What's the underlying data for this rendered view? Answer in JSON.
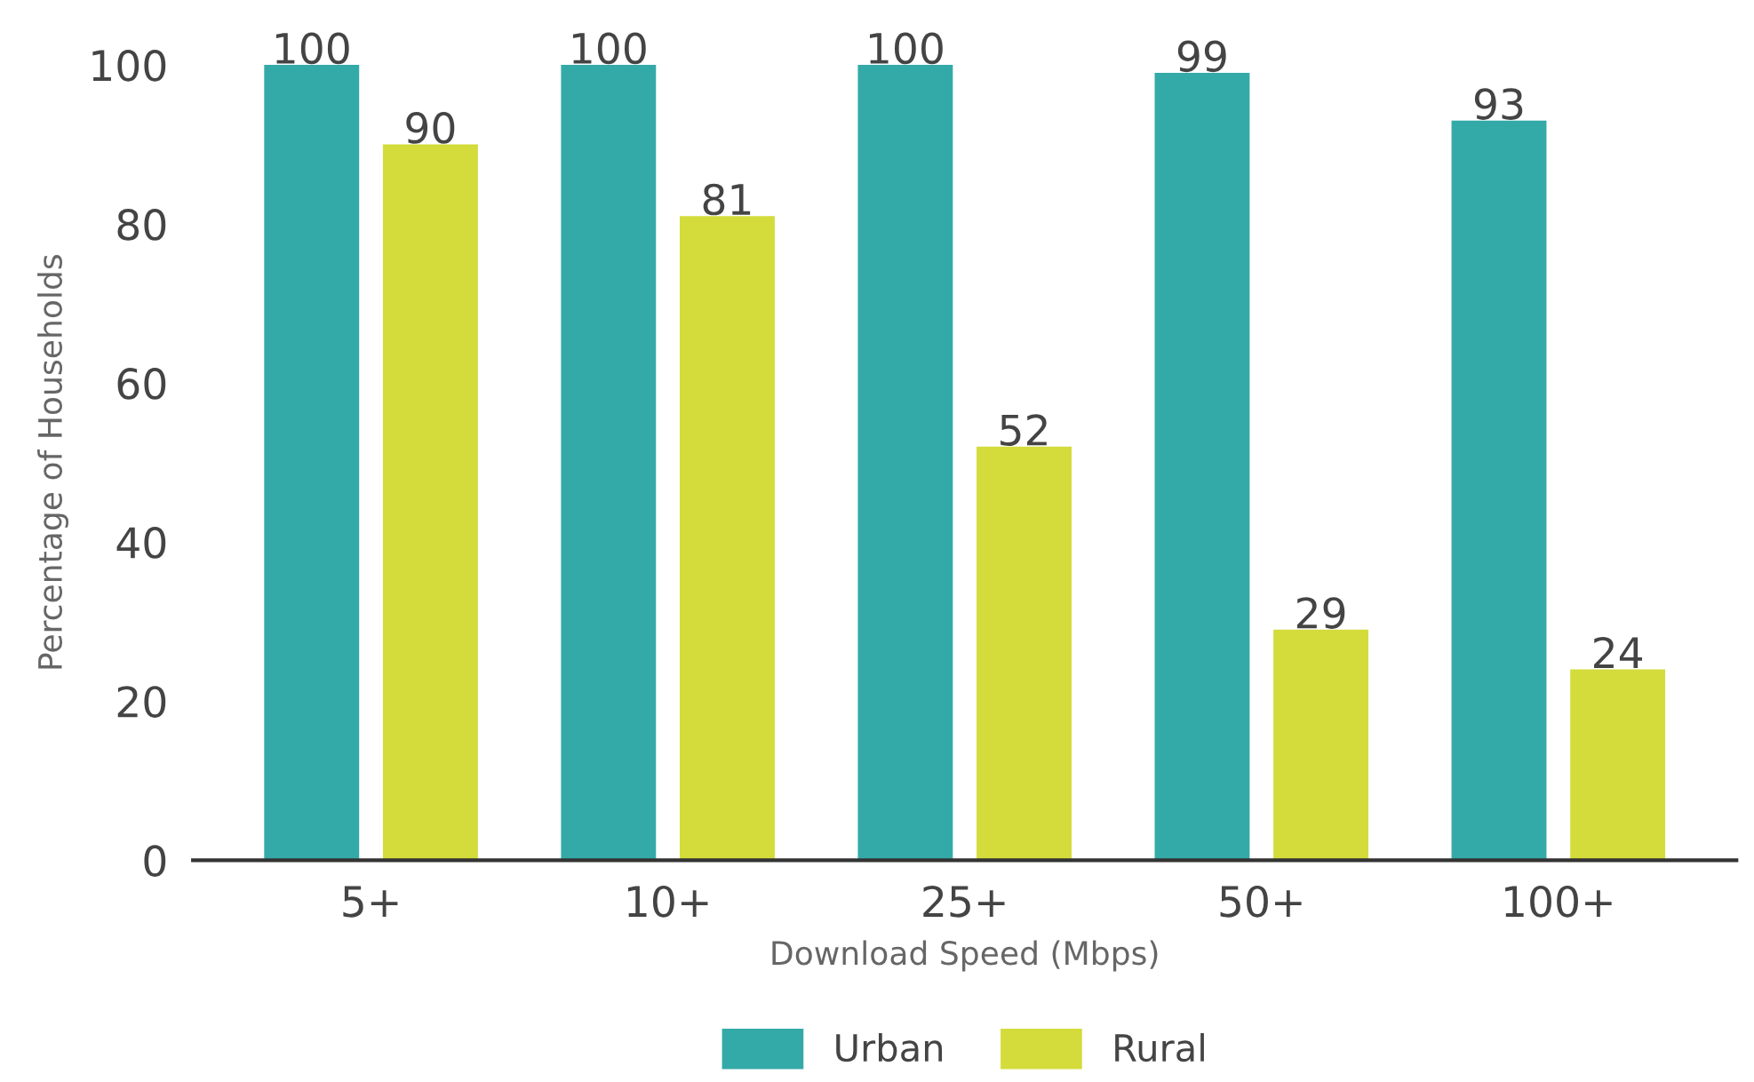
{
  "chart_data": {
    "type": "bar",
    "xlabel": "Download Speed (Mbps)",
    "ylabel": "Percentage of Households",
    "categories": [
      "5+",
      "10+",
      "25+",
      "50+",
      "100+"
    ],
    "series": [
      {
        "name": "Urban",
        "color": "#34aaa8",
        "values": [
          100,
          100,
          100,
          99,
          93
        ]
      },
      {
        "name": "Rural",
        "color": "#d3dc3b",
        "values": [
          90,
          81,
          52,
          29,
          24
        ]
      }
    ],
    "ylim": [
      0,
      100
    ],
    "yticks": [
      0,
      20,
      40,
      60,
      80,
      100
    ],
    "data_labels": true,
    "grid": false,
    "legend": "bottom"
  }
}
